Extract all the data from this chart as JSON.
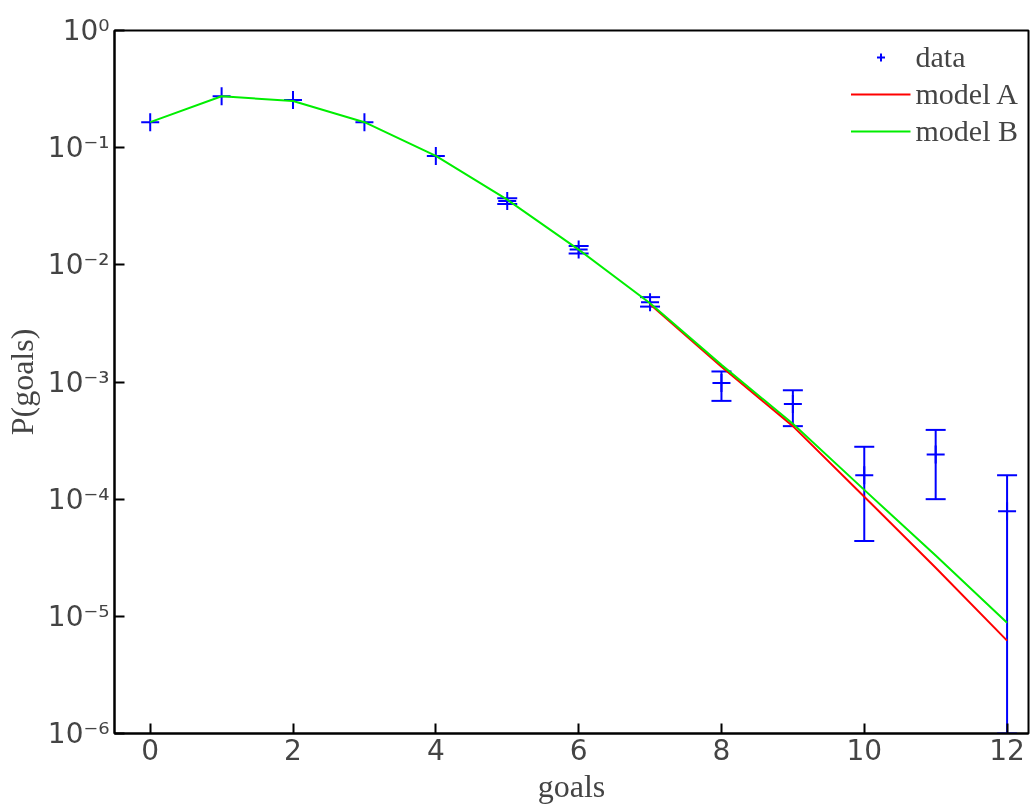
{
  "chart_data": {
    "type": "line",
    "xlabel": "goals",
    "ylabel": "P(goals)",
    "log": "y",
    "grid": false,
    "legend": "top right",
    "x": [
      0,
      1,
      2,
      3,
      4,
      5,
      6,
      7,
      8,
      9,
      10,
      11,
      12
    ],
    "xlim": [
      -0.5,
      12.3
    ],
    "xticks": [
      0,
      2,
      4,
      6,
      8,
      10,
      12
    ],
    "ylim": [
      1e-06,
      1
    ],
    "yticks": [
      {
        "value": 1e-06,
        "label": "10⁻⁶"
      },
      {
        "value": 1e-05,
        "label": "10⁻⁵"
      },
      {
        "value": 0.0001,
        "label": "10⁻⁴"
      },
      {
        "value": 0.001,
        "label": "10⁻³"
      },
      {
        "value": 0.01,
        "label": "10⁻²"
      },
      {
        "value": 0.1,
        "label": "10⁻¹"
      },
      {
        "value": 1,
        "label": "10⁰"
      }
    ],
    "series": [
      {
        "name": "data",
        "type": "scatter",
        "marker": "cross",
        "color": "#0000ff",
        "values": [
          0.165,
          0.275,
          0.255,
          0.165,
          0.085,
          0.035,
          0.0135,
          0.0048,
          0.00098,
          0.00065,
          0.00016,
          0.00024,
          7.9e-05
        ],
        "errors": [
          null,
          null,
          null,
          null,
          null,
          [
            0.033,
            0.037
          ],
          [
            0.0125,
            0.0145
          ],
          [
            0.0044,
            0.0053
          ],
          [
            0.00069,
            0.00123
          ],
          [
            0.00042,
            0.00085
          ],
          [
            4.4e-05,
            0.00028
          ],
          [
            0.0001,
            0.00039
          ],
          [
            1e-06,
            0.00016
          ]
        ]
      },
      {
        "name": "model A",
        "line_style": "solid",
        "color": "#ff0000",
        "values": [
          null,
          null,
          null,
          null,
          null,
          null,
          null,
          0.0046,
          0.00135,
          0.00042,
          0.000105,
          2.6e-05,
          6.2e-06
        ]
      },
      {
        "name": "model B",
        "line_style": "solid",
        "color": "#00ee00",
        "values": [
          0.165,
          0.275,
          0.25,
          0.165,
          0.085,
          0.036,
          0.0135,
          0.0047,
          0.0014,
          0.00044,
          0.00012,
          3.3e-05,
          8.8e-06
        ]
      }
    ]
  }
}
